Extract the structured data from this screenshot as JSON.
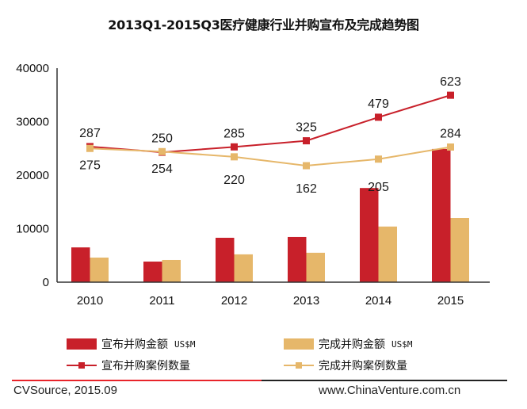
{
  "title": "2013Q1-2015Q3医疗健康行业并购宣布及完成趋势图",
  "colors": {
    "announced": "#C8202A",
    "completed": "#E6B76A",
    "footer_red": "#E8242A"
  },
  "chart_data": {
    "type": "bar",
    "title": "2013Q1-2015Q3医疗健康行业并购宣布及完成趋势图",
    "categories": [
      "2010",
      "2011",
      "2012",
      "2013",
      "2014",
      "2015"
    ],
    "ylim": [
      0,
      40000
    ],
    "yticks": [
      "0",
      "10000",
      "20000",
      "30000",
      "40000"
    ],
    "y2lim": [
      -600,
      800
    ],
    "grid": false,
    "legend_position": "bottom",
    "series": [
      {
        "name": "宣布并购金额",
        "unit": "US$M",
        "type": "bar",
        "color": "#C8202A",
        "values": [
          6500,
          3850,
          8300,
          8450,
          17600,
          24900
        ]
      },
      {
        "name": "完成并购金额",
        "unit": "US$M",
        "type": "bar",
        "color": "#E6B76A",
        "values": [
          4600,
          4150,
          5200,
          5500,
          10400,
          12000
        ]
      },
      {
        "name": "宣布并购案例数量",
        "type": "line",
        "axis": "secondary",
        "color": "#C8202A",
        "values": [
          287,
          250,
          285,
          325,
          479,
          623
        ],
        "labels": [
          "287",
          "250",
          "285",
          "325",
          "479",
          "623"
        ]
      },
      {
        "name": "完成并购案例数量",
        "type": "line",
        "axis": "secondary",
        "color": "#E6B76A",
        "values": [
          275,
          254,
          220,
          162,
          205,
          284
        ],
        "labels": [
          "275",
          "254",
          "220",
          "162",
          "205",
          "284"
        ]
      }
    ]
  },
  "legend": {
    "announced_amount": "宣布并购金额",
    "announced_unit": "US$M",
    "completed_amount": "完成并购金额",
    "completed_unit": "US$M",
    "announced_count": "宣布并购案例数量",
    "completed_count": "完成并购案例数量"
  },
  "footer": {
    "source": "CVSource, 2015.09",
    "site": "www.ChinaVenture.com.cn"
  }
}
